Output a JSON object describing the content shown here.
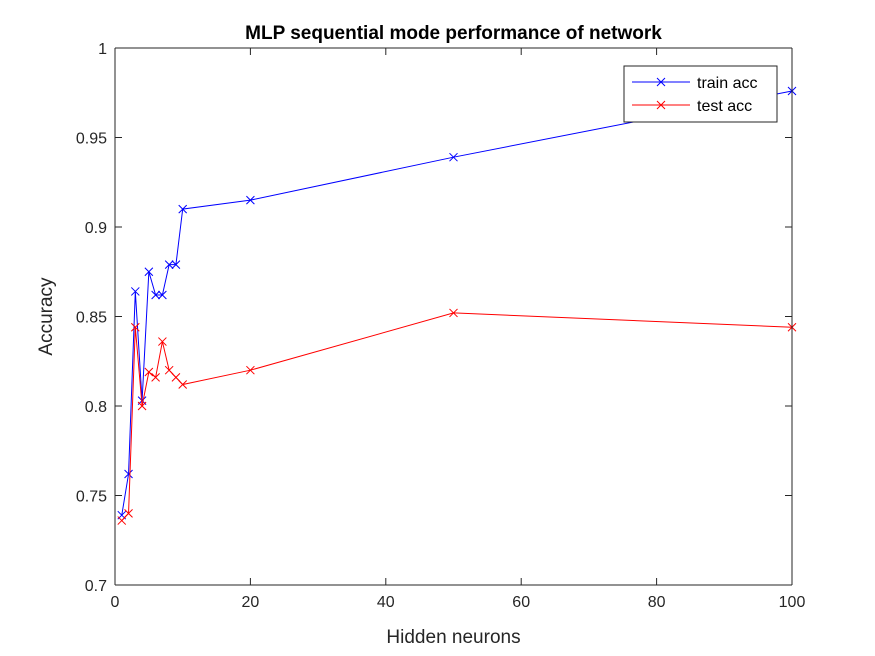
{
  "chart_data": {
    "type": "line",
    "title": "MLP sequential mode performance of network",
    "xlabel": "Hidden neurons",
    "ylabel": "Accuracy",
    "xlim": [
      0,
      100
    ],
    "ylim": [
      0.7,
      1
    ],
    "xticks": [
      0,
      20,
      40,
      60,
      80,
      100
    ],
    "xtick_labels": [
      "0",
      "20",
      "40",
      "60",
      "80",
      "100"
    ],
    "yticks": [
      0.7,
      0.75,
      0.8,
      0.85,
      0.9,
      0.95,
      1
    ],
    "ytick_labels": [
      "0.7",
      "0.75",
      "0.8",
      "0.85",
      "0.9",
      "0.95",
      "1"
    ],
    "grid": false,
    "legend_position": "top-right",
    "x": [
      1,
      2,
      3,
      4,
      5,
      6,
      7,
      8,
      9,
      10,
      20,
      50,
      100
    ],
    "series": [
      {
        "name": "train acc",
        "color": "#0000ff",
        "marker": "x",
        "values": [
          0.739,
          0.762,
          0.864,
          0.803,
          0.875,
          0.862,
          0.862,
          0.879,
          0.879,
          0.91,
          0.915,
          0.939,
          0.976
        ]
      },
      {
        "name": "test acc",
        "color": "#ff0000",
        "marker": "x",
        "values": [
          0.736,
          0.74,
          0.844,
          0.8,
          0.819,
          0.816,
          0.836,
          0.82,
          0.816,
          0.812,
          0.82,
          0.852,
          0.844
        ]
      }
    ]
  }
}
